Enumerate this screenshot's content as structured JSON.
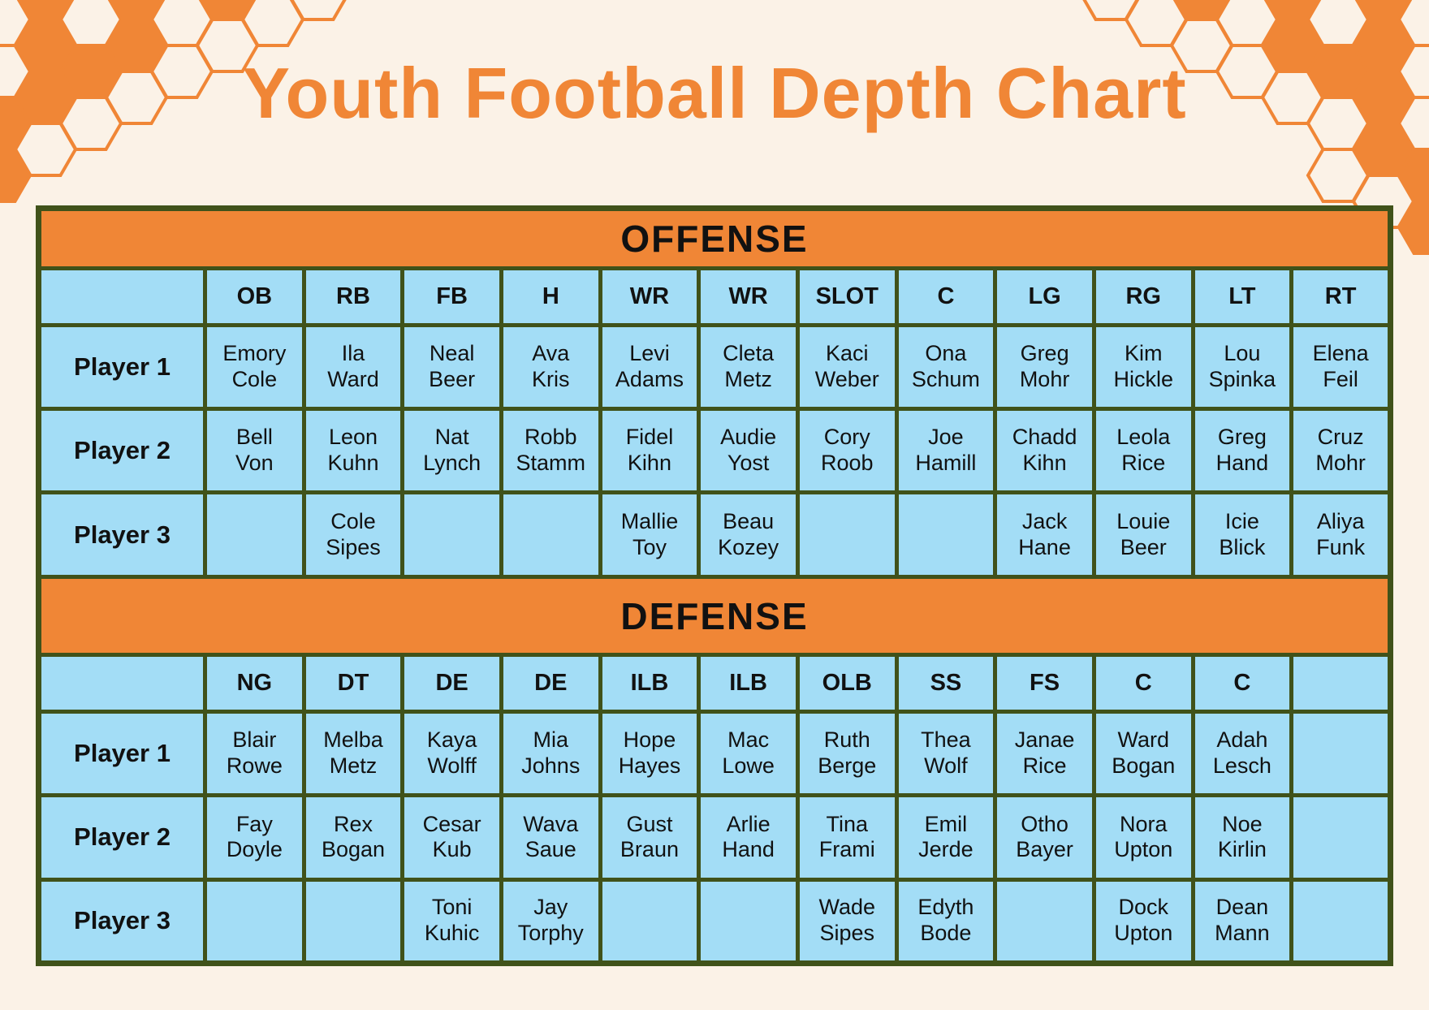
{
  "title": "Youth Football Depth Chart",
  "offense": {
    "section_label": "OFFENSE",
    "positions": [
      "OB",
      "RB",
      "FB",
      "H",
      "WR",
      "WR",
      "SLOT",
      "C",
      "LG",
      "RG",
      "LT",
      "RT"
    ],
    "rows": [
      {
        "label": "Player 1",
        "cells": [
          "Emory\nCole",
          "Ila\nWard",
          "Neal\nBeer",
          "Ava\nKris",
          "Levi\nAdams",
          "Cleta\nMetz",
          "Kaci\nWeber",
          "Ona\nSchum",
          "Greg\nMohr",
          "Kim\nHickle",
          "Lou\nSpinka",
          "Elena\nFeil"
        ]
      },
      {
        "label": "Player 2",
        "cells": [
          "Bell\nVon",
          "Leon\nKuhn",
          "Nat\nLynch",
          "Robb\nStamm",
          "Fidel\nKihn",
          "Audie\nYost",
          "Cory\nRoob",
          "Joe\nHamill",
          "Chadd\nKihn",
          "Leola\nRice",
          "Greg\nHand",
          "Cruz\nMohr"
        ]
      },
      {
        "label": "Player 3",
        "cells": [
          "",
          "Cole\nSipes",
          "",
          "",
          "Mallie\nToy",
          "Beau\nKozey",
          "",
          "",
          "Jack\nHane",
          "Louie\nBeer",
          "Icie\nBlick",
          "Aliya\nFunk"
        ]
      }
    ]
  },
  "defense": {
    "section_label": "DEFENSE",
    "positions": [
      "NG",
      "DT",
      "DE",
      "DE",
      "ILB",
      "ILB",
      "OLB",
      "SS",
      "FS",
      "C",
      "C",
      ""
    ],
    "rows": [
      {
        "label": "Player 1",
        "cells": [
          "Blair\nRowe",
          "Melba\nMetz",
          "Kaya\nWolff",
          "Mia\nJohns",
          "Hope\nHayes",
          "Mac\nLowe",
          "Ruth\nBerge",
          "Thea\nWolf",
          "Janae\nRice",
          "Ward\nBogan",
          "Adah\nLesch",
          ""
        ]
      },
      {
        "label": "Player 2",
        "cells": [
          "Fay\nDoyle",
          "Rex\nBogan",
          "Cesar\nKub",
          "Wava\nSaue",
          "Gust\nBraun",
          "Arlie\nHand",
          "Tina\nFrami",
          "Emil\nJerde",
          "Otho\nBayer",
          "Nora\nUpton",
          "Noe\nKirlin",
          ""
        ]
      },
      {
        "label": "Player 3",
        "cells": [
          "",
          "",
          "Toni\nKuhic",
          "Jay\nTorphy",
          "",
          "",
          "Wade\nSipes",
          "Edyth\nBode",
          "",
          "Dock\nUpton",
          "Dean\nMann",
          ""
        ]
      }
    ]
  },
  "colors": {
    "background": "#FBF2E7",
    "accent_orange": "#F08636",
    "cell_blue": "#A3DDF6",
    "border_green": "#40521A",
    "banner_text": "#FFFFFF",
    "text_dark": "#111111"
  }
}
